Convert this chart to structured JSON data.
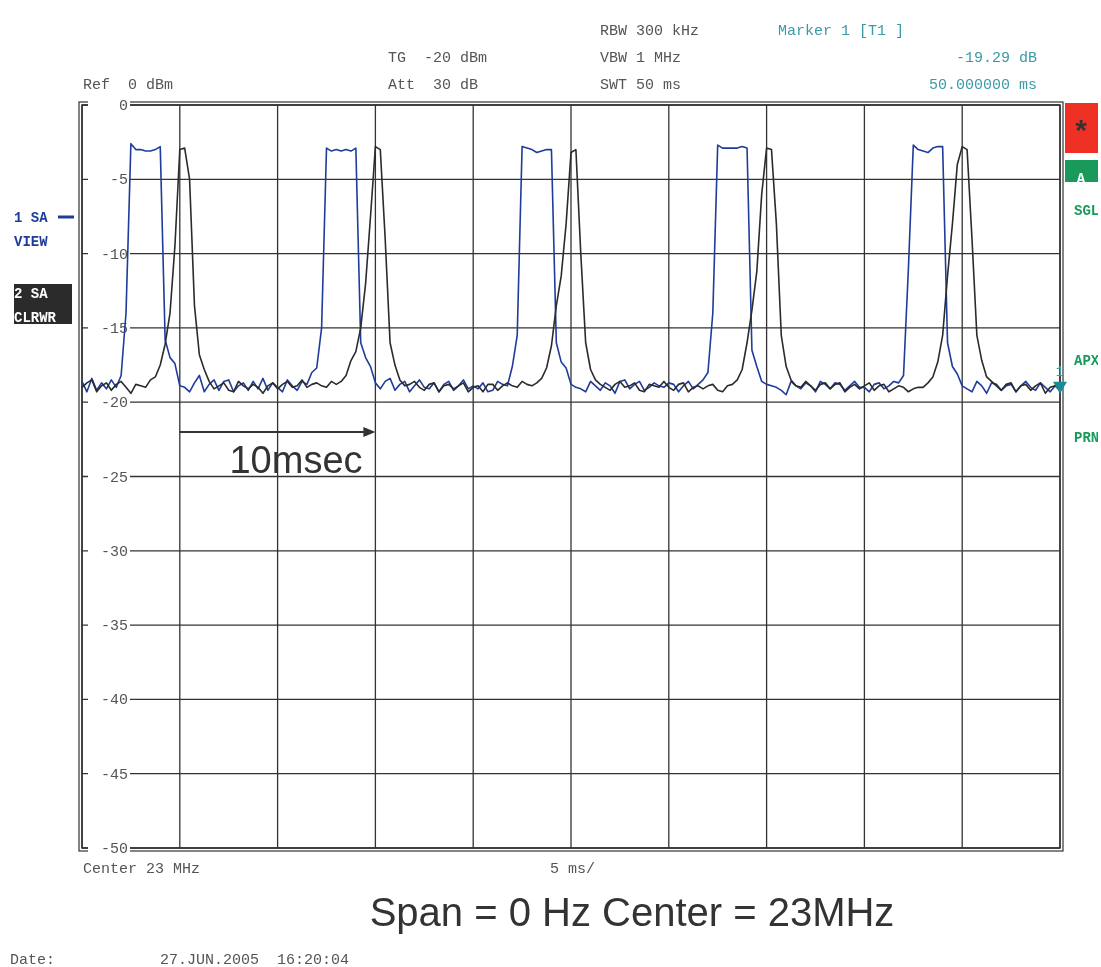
{
  "chart_data": {
    "type": "line",
    "ylim": [
      -50,
      0
    ],
    "categories": [
      null,
      null,
      null,
      null,
      null,
      null,
      null,
      null,
      null,
      null,
      null,
      null,
      null,
      null,
      null,
      null,
      null,
      null,
      null,
      null,
      null,
      null,
      null,
      null,
      null,
      null,
      null,
      null,
      null,
      null,
      null,
      null,
      null,
      null,
      null,
      null,
      null,
      null,
      null,
      null,
      null,
      null,
      null,
      null,
      null,
      null,
      null,
      null,
      null,
      null,
      null,
      null,
      null,
      null,
      null,
      null,
      null,
      null,
      null,
      null,
      null,
      null,
      null,
      null,
      null,
      null,
      null,
      null,
      null,
      null,
      null,
      null,
      null,
      null,
      null,
      null,
      null,
      null,
      null,
      null,
      null,
      null,
      null,
      null,
      null,
      null,
      null,
      null,
      null,
      null,
      null,
      null,
      null,
      null,
      null,
      null,
      null,
      null,
      null,
      null,
      null,
      null,
      null,
      null,
      null,
      null,
      null,
      null,
      null,
      null,
      null,
      null,
      null,
      null,
      null,
      null,
      null,
      null,
      null,
      null,
      null,
      null,
      null,
      null,
      null,
      null,
      null,
      null,
      null,
      null,
      null,
      null,
      null,
      null,
      null,
      null,
      null,
      null,
      null,
      null,
      null,
      null,
      null,
      null,
      null,
      null,
      null,
      null,
      null,
      null,
      null,
      null,
      null,
      null,
      null,
      null,
      null,
      null,
      null,
      null,
      null,
      null,
      null,
      null,
      null,
      null,
      null,
      null,
      null,
      null,
      null,
      null,
      null,
      null,
      null,
      null,
      null,
      null,
      null,
      null,
      null,
      null,
      null,
      null,
      null,
      null,
      null,
      null,
      null,
      null,
      null,
      null,
      null,
      null,
      null,
      null,
      null,
      null,
      null,
      null,
      null
    ],
    "yticks": [
      0,
      -5,
      -10,
      -15,
      -20,
      -25,
      -30,
      -35,
      -40,
      -45,
      -50
    ],
    "tick_labels": "y",
    "grid": true,
    "legend": "left",
    "line_style": "solid",
    "series": [
      {
        "name": "1 SA",
        "color": "#1f3c9a",
        "values": [
          -18.6,
          -19.3,
          -18.4,
          -19.2,
          -18.7,
          -19.1,
          -18.5,
          -19.0,
          -18.2,
          -14.0,
          -2.6,
          -3.0,
          -3.0,
          -3.1,
          -3.1,
          -3.0,
          -2.8,
          -15.8,
          -17.0,
          -17.4,
          -18.9,
          -19.0,
          -19.3,
          -18.7,
          -18.2,
          -19.3,
          -18.8,
          -18.5,
          -19.2,
          -18.6,
          -18.5,
          -19.3,
          -18.9,
          -18.7,
          -19.2,
          -18.6,
          -19.1,
          -18.4,
          -19.2,
          -18.7,
          -19.0,
          -19.3,
          -18.5,
          -18.9,
          -19.2,
          -18.6,
          -18.8,
          -18.0,
          -17.7,
          -15.0,
          -2.9,
          -3.1,
          -3.0,
          -3.1,
          -3.0,
          -3.1,
          -2.9,
          -16.0,
          -17.0,
          -17.6,
          -18.7,
          -19.1,
          -18.6,
          -18.4,
          -19.2,
          -18.8,
          -18.6,
          -19.3,
          -18.9,
          -18.5,
          -19.0,
          -19.1,
          -18.7,
          -19.3,
          -18.8,
          -18.6,
          -19.2,
          -18.9,
          -18.5,
          -19.1,
          -18.9,
          -19.1,
          -18.7,
          -19.3,
          -19.2,
          -18.6,
          -18.8,
          -18.9,
          -17.6,
          -15.5,
          -2.8,
          -2.9,
          -3.0,
          -3.2,
          -3.1,
          -3.0,
          -3.0,
          -16.0,
          -17.3,
          -17.7,
          -18.8,
          -19.0,
          -19.1,
          -19.3,
          -18.6,
          -18.9,
          -19.2,
          -18.7,
          -18.9,
          -19.4,
          -18.6,
          -18.5,
          -19.1,
          -18.8,
          -18.6,
          -19.2,
          -19.0,
          -18.7,
          -18.9,
          -19.0,
          -18.7,
          -18.8,
          -19.3,
          -18.9,
          -18.6,
          -19.1,
          -18.8,
          -18.5,
          -18.0,
          -14.0,
          -2.7,
          -2.9,
          -2.9,
          -2.9,
          -2.9,
          -2.8,
          -2.9,
          -16.5,
          -17.6,
          -18.6,
          -18.8,
          -18.9,
          -19.0,
          -19.2,
          -19.5,
          -18.6,
          -18.9,
          -19.1,
          -18.7,
          -18.9,
          -19.3,
          -18.6,
          -18.8,
          -19.1,
          -18.7,
          -18.8,
          -19.2,
          -18.9,
          -18.6,
          -19.0,
          -19.0,
          -19.3,
          -18.8,
          -18.7,
          -19.1,
          -18.9,
          -18.6,
          -18.7,
          -18.2,
          -11.0,
          -2.7,
          -3.0,
          -3.1,
          -3.2,
          -2.9,
          -2.8,
          -2.8,
          -16.0,
          -17.6,
          -18.1,
          -18.9,
          -19.1,
          -19.3,
          -18.6,
          -18.9,
          -19.4,
          -18.7,
          -18.8,
          -19.2,
          -18.9,
          -18.8,
          -19.3,
          -18.9,
          -18.6,
          -19.0,
          -19.2,
          -18.7,
          -19.0,
          -19.3,
          -18.9,
          -19.0
        ]
      },
      {
        "name": "2 SA",
        "color": "#2b2b2b",
        "values": [
          -19.0,
          -18.7,
          -18.5,
          -19.3,
          -18.9,
          -18.7,
          -19.2,
          -18.8,
          -18.6,
          -19.0,
          -19.4,
          -18.8,
          -18.9,
          -19.0,
          -18.5,
          -18.3,
          -17.5,
          -16.1,
          -14.0,
          -9.5,
          -3.0,
          -2.9,
          -5.0,
          -13.5,
          -16.8,
          -17.8,
          -18.6,
          -19.1,
          -18.9,
          -18.7,
          -19.2,
          -19.3,
          -18.6,
          -18.9,
          -19.1,
          -18.8,
          -19.0,
          -19.4,
          -18.9,
          -18.7,
          -19.1,
          -18.8,
          -18.6,
          -19.0,
          -18.9,
          -18.5,
          -19.0,
          -18.8,
          -18.7,
          -18.9,
          -19.0,
          -18.6,
          -18.8,
          -18.6,
          -18.2,
          -17.2,
          -16.6,
          -15.0,
          -12.0,
          -7.5,
          -2.8,
          -3.0,
          -9.0,
          -16.0,
          -17.5,
          -18.5,
          -18.9,
          -18.8,
          -18.6,
          -19.0,
          -19.2,
          -18.8,
          -18.7,
          -19.3,
          -18.9,
          -18.8,
          -19.1,
          -18.9,
          -18.7,
          -19.3,
          -19.0,
          -18.9,
          -19.3,
          -18.8,
          -18.8,
          -19.2,
          -18.9,
          -18.7,
          -18.9,
          -19.0,
          -18.6,
          -18.8,
          -18.9,
          -18.7,
          -18.4,
          -17.7,
          -16.2,
          -13.5,
          -11.5,
          -8.0,
          -3.2,
          -3.0,
          -10.0,
          -16.0,
          -17.8,
          -18.5,
          -18.8,
          -19.0,
          -19.2,
          -18.8,
          -18.6,
          -19.0,
          -18.9,
          -18.7,
          -19.2,
          -19.3,
          -18.8,
          -18.9,
          -19.0,
          -18.6,
          -19.0,
          -19.2,
          -18.8,
          -18.7,
          -19.3,
          -19.0,
          -18.9,
          -19.1,
          -18.9,
          -18.8,
          -19.2,
          -19.3,
          -18.9,
          -18.8,
          -18.5,
          -17.8,
          -16.0,
          -13.8,
          -11.2,
          -6.0,
          -2.9,
          -3.0,
          -8.0,
          -15.5,
          -17.6,
          -18.5,
          -18.9,
          -19.0,
          -18.6,
          -18.9,
          -19.2,
          -18.8,
          -18.7,
          -19.1,
          -18.8,
          -18.7,
          -19.3,
          -19.0,
          -18.8,
          -19.1,
          -18.9,
          -18.7,
          -19.2,
          -18.9,
          -18.8,
          -19.3,
          -19.1,
          -18.9,
          -19.0,
          -19.3,
          -19.1,
          -19.0,
          -19.0,
          -18.7,
          -18.3,
          -17.3,
          -15.5,
          -11.5,
          -8.0,
          -4.0,
          -2.8,
          -3.0,
          -9.0,
          -15.5,
          -17.2,
          -18.3,
          -18.6,
          -18.9,
          -19.2,
          -18.8,
          -18.7,
          -19.3,
          -18.9,
          -18.8,
          -19.2,
          -18.9,
          -18.7,
          -19.4,
          -19.0,
          -18.9,
          -19.2
        ]
      }
    ],
    "annotations": [
      "RBW 300 kHz",
      "Marker 1 [T1 ]",
      "TG  -20 dBm",
      "VBW 1 MHz",
      "-19.29 dB",
      "Ref  0 dBm",
      "Att  30 dB",
      "SWT 50 ms",
      "50.000000 ms",
      "VIEW",
      "CLRWR",
      "*",
      "A",
      "SGL",
      "APX",
      "PRN",
      "Center 23 MHz",
      "5 ms/",
      "Span = 0 Hz Center = 23MHz",
      "Date:",
      "27.JUN.2005  16:20:04",
      "10msec",
      {
        "text": "1",
        "y": -19.29
      }
    ]
  }
}
